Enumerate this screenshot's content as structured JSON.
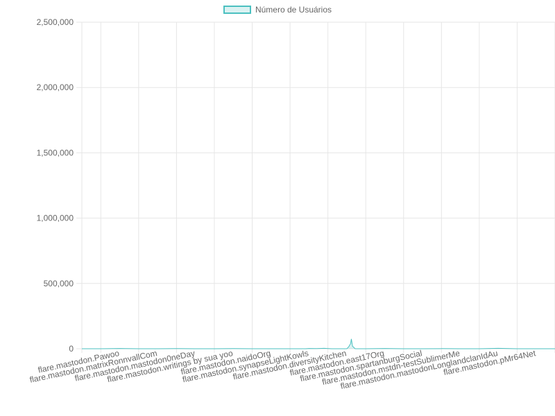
{
  "chart_data": {
    "type": "area",
    "legend": {
      "label": "Número de Usuários",
      "position": "top"
    },
    "y_ticks": [
      "0",
      "500,000",
      "1,000,000",
      "1,500,000",
      "2,000,000",
      "2,500,000"
    ],
    "ylim": [
      0,
      2500000
    ],
    "grid": true,
    "colors": {
      "border": "#4bc0c0",
      "fill": "rgba(75,192,192,0.2)",
      "grid": "#e6e6e6",
      "text": "#666666"
    },
    "categories": [
      "flare.mastodon.Pawoo",
      "flare.mastodon.matrixRonnvallCom",
      "flare.mastodon.mastodon0neDay",
      "flare.mastodon.writings by sua yoo",
      "flare.mastodon.naidoOrg",
      "flare.mastodon.synapseLightKowls",
      "flare.mastodon.diversityKitchen",
      "flare.mastodon.east17Org",
      "flare.mastodon.spartanburgSocial",
      "flare.mastodon.mstdn-testSublimerMe",
      "flare.mastodon.mastodonLonglandclanIdAu",
      "flare.mastodon.pMr64Net"
    ],
    "category_positions": [
      1,
      2,
      3,
      4,
      5,
      6,
      7,
      8,
      9,
      10,
      11,
      12
    ],
    "values": [
      [
        0.0,
        0
      ],
      [
        0.5,
        0
      ],
      [
        1.0,
        2000
      ],
      [
        1.5,
        0
      ],
      [
        2.0,
        0
      ],
      [
        2.5,
        1000
      ],
      [
        3.0,
        0
      ],
      [
        3.5,
        0
      ],
      [
        4.0,
        1500
      ],
      [
        4.5,
        0
      ],
      [
        5.0,
        0
      ],
      [
        5.5,
        0
      ],
      [
        5.9,
        0
      ],
      [
        6.0,
        2000
      ],
      [
        6.2,
        1000
      ],
      [
        6.4,
        3000
      ],
      [
        6.6,
        0
      ],
      [
        7.0,
        0
      ],
      [
        7.05,
        15000
      ],
      [
        7.1,
        40000
      ],
      [
        7.12,
        75000
      ],
      [
        7.15,
        20000
      ],
      [
        7.22,
        0
      ],
      [
        7.5,
        0
      ],
      [
        8.0,
        2000
      ],
      [
        8.5,
        0
      ],
      [
        9.0,
        0
      ],
      [
        9.5,
        1000
      ],
      [
        10.0,
        0
      ],
      [
        10.5,
        0
      ],
      [
        11.0,
        3000
      ],
      [
        11.5,
        0
      ],
      [
        12.0,
        0
      ],
      [
        12.5,
        0
      ]
    ]
  }
}
